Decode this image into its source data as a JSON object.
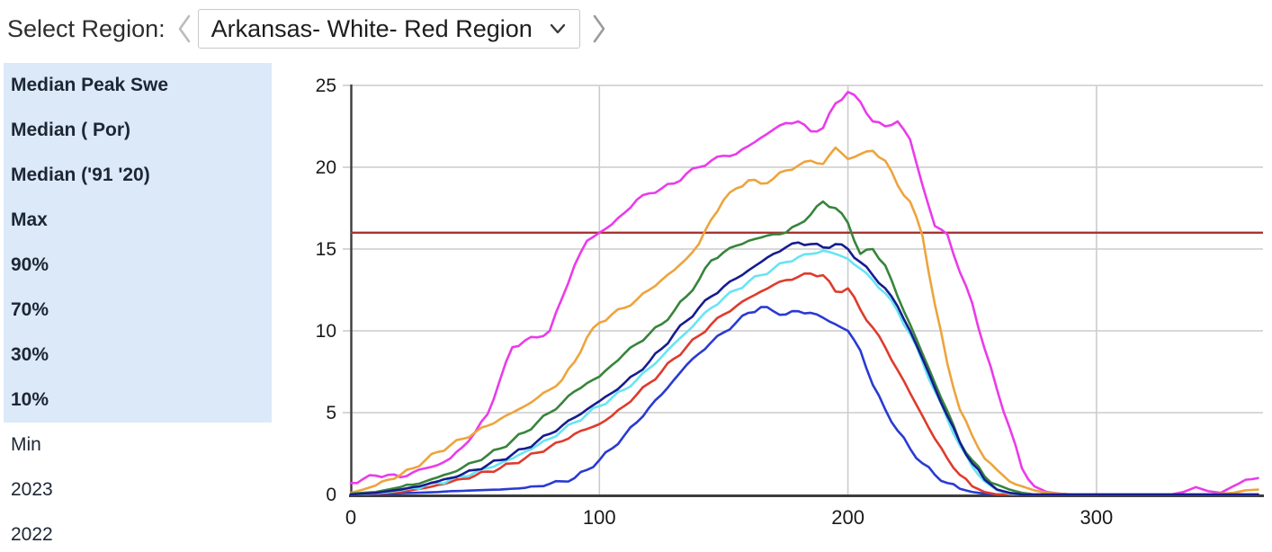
{
  "header": {
    "label": "Select Region:",
    "region": "Arkansas- White- Red Region",
    "prev_icon": "chevron-left",
    "next_icon": "chevron-right",
    "caret_icon": "chevron-down"
  },
  "legend": {
    "items": [
      {
        "label": "Median Peak Swe",
        "active": true
      },
      {
        "label": "Median ( Por)",
        "active": true
      },
      {
        "label": "Median ('91 '20)",
        "active": true
      },
      {
        "label": "Max",
        "active": true
      },
      {
        "label": "90%",
        "active": true
      },
      {
        "label": "70%",
        "active": true
      },
      {
        "label": "30%",
        "active": true
      },
      {
        "label": "10%",
        "active": true
      },
      {
        "label": "Min",
        "active": false
      },
      {
        "label": "2023",
        "active": false
      },
      {
        "label": "2022",
        "active": false
      }
    ]
  },
  "colors": {
    "legend_active_bg": "#dbe9f9",
    "grid": "#cccccc",
    "axis": "#3c3c3c",
    "tick_text": "#1a1a1a"
  },
  "chart_data": {
    "type": "line",
    "title": "",
    "xlabel": "",
    "ylabel": "",
    "x_range": [
      0,
      367
    ],
    "y_range": [
      0,
      25
    ],
    "x_ticks": [
      0,
      100,
      200,
      300
    ],
    "y_ticks": [
      0,
      5,
      10,
      15,
      20,
      25
    ],
    "grid": true,
    "day_step": 5,
    "series": [
      {
        "name": "Median Peak Swe",
        "color": "#a83434",
        "kind": "hline",
        "value": 16
      },
      {
        "name": "Max",
        "color": "#ea3bea",
        "kind": "curve",
        "values": [
          0.7,
          0.95,
          1.15,
          1.2,
          1.05,
          1.35,
          1.6,
          1.8,
          2.2,
          2.9,
          3.8,
          4.9,
          7.0,
          9.0,
          9.4,
          9.6,
          10.0,
          12.0,
          14.0,
          15.5,
          16.0,
          16.5,
          17.2,
          18.0,
          18.4,
          18.7,
          19.0,
          19.6,
          20.0,
          20.4,
          20.7,
          20.8,
          21.3,
          21.8,
          22.3,
          22.7,
          22.8,
          22.2,
          22.4,
          23.9,
          24.6,
          24.0,
          22.8,
          22.5,
          22.8,
          21.7,
          18.9,
          16.4,
          15.9,
          13.6,
          11.7,
          8.9,
          6.4,
          4.1,
          1.6,
          0.5,
          0.15,
          0.05,
          0,
          0,
          0,
          0,
          0,
          0,
          0,
          0,
          0,
          0.15,
          0.45,
          0.2,
          0.1,
          0.5,
          0.9,
          1.0
        ]
      },
      {
        "name": "90%",
        "color": "#eda43c",
        "kind": "curve",
        "values": [
          0.1,
          0.3,
          0.55,
          0.9,
          1.2,
          1.6,
          2.1,
          2.6,
          3.0,
          3.4,
          3.8,
          4.2,
          4.6,
          5.0,
          5.4,
          5.9,
          6.4,
          7.0,
          8.1,
          9.6,
          10.5,
          11.0,
          11.4,
          11.9,
          12.5,
          13.1,
          13.7,
          14.4,
          15.3,
          16.8,
          18.0,
          18.7,
          19.2,
          19.0,
          19.3,
          19.8,
          20.1,
          20.4,
          20.2,
          21.2,
          20.5,
          20.8,
          21.0,
          20.4,
          18.9,
          17.9,
          15.8,
          11.6,
          8.0,
          5.2,
          3.6,
          2.2,
          1.5,
          0.8,
          0.5,
          0.25,
          0.1,
          0.05,
          0,
          0,
          0,
          0,
          0,
          0,
          0,
          0,
          0,
          0,
          0,
          0,
          0.05,
          0.1,
          0.25,
          0.3
        ]
      },
      {
        "name": "70%",
        "color": "#38843c",
        "kind": "curve",
        "values": [
          0.05,
          0.1,
          0.15,
          0.3,
          0.45,
          0.6,
          0.8,
          1.05,
          1.3,
          1.65,
          2.0,
          2.4,
          2.8,
          3.3,
          3.8,
          4.4,
          5.0,
          5.6,
          6.3,
          6.8,
          7.2,
          7.9,
          8.6,
          9.2,
          9.8,
          10.4,
          11.2,
          12.1,
          13.1,
          14.3,
          14.8,
          15.2,
          15.5,
          15.7,
          15.9,
          16.0,
          16.5,
          17.1,
          17.9,
          17.5,
          16.6,
          14.7,
          15.0,
          14.0,
          12.1,
          10.4,
          8.6,
          6.8,
          5.1,
          3.2,
          2.1,
          1.1,
          0.6,
          0.3,
          0.1,
          0,
          0,
          0,
          0,
          0,
          0,
          0,
          0,
          0,
          0,
          0,
          0,
          0,
          0,
          0,
          0,
          0,
          0,
          0
        ]
      },
      {
        "name": "10%",
        "color": "#2a3ad2",
        "kind": "curve",
        "values": [
          0,
          0,
          0.02,
          0.05,
          0.08,
          0.1,
          0.12,
          0.15,
          0.2,
          0.22,
          0.25,
          0.28,
          0.3,
          0.35,
          0.4,
          0.5,
          0.65,
          0.8,
          1.0,
          1.5,
          2.1,
          2.8,
          3.6,
          4.4,
          5.3,
          6.1,
          7.0,
          7.9,
          8.6,
          9.3,
          9.9,
          10.5,
          11.1,
          11.45,
          11.2,
          11.0,
          11.2,
          11.1,
          10.8,
          10.4,
          10.0,
          8.8,
          6.7,
          5.2,
          3.9,
          2.8,
          1.9,
          1.2,
          0.7,
          0.35,
          0.15,
          0.05,
          0,
          0,
          0,
          0,
          0,
          0,
          0,
          0,
          0,
          0,
          0,
          0,
          0,
          0,
          0,
          0,
          0,
          0,
          0,
          0,
          0,
          0
        ]
      },
      {
        "name": "30%",
        "color": "#de3b2d",
        "kind": "curve",
        "values": [
          0,
          0.02,
          0.05,
          0.1,
          0.15,
          0.28,
          0.4,
          0.58,
          0.75,
          0.95,
          1.15,
          1.4,
          1.6,
          1.9,
          2.2,
          2.55,
          2.9,
          3.25,
          3.7,
          4.0,
          4.3,
          4.8,
          5.4,
          6.1,
          6.8,
          7.5,
          8.3,
          9.0,
          9.7,
          10.4,
          11.0,
          11.5,
          12.0,
          12.4,
          12.8,
          13.1,
          13.3,
          13.5,
          13.4,
          12.4,
          12.6,
          11.3,
          10.2,
          9.0,
          7.6,
          6.2,
          4.8,
          3.4,
          2.2,
          1.2,
          0.5,
          0.15,
          0,
          0,
          0,
          0,
          0,
          0,
          0,
          0,
          0,
          0,
          0,
          0,
          0,
          0,
          0,
          0,
          0,
          0,
          0,
          0,
          0,
          0
        ]
      },
      {
        "name": "Median ( Por)",
        "color": "#68e4f4",
        "kind": "curve",
        "values": [
          0,
          0.03,
          0.08,
          0.15,
          0.25,
          0.4,
          0.55,
          0.7,
          0.9,
          1.1,
          1.35,
          1.6,
          1.9,
          2.2,
          2.6,
          3.0,
          3.4,
          3.9,
          4.4,
          4.9,
          5.4,
          5.9,
          6.4,
          7.0,
          7.7,
          8.4,
          9.2,
          9.9,
          10.7,
          11.4,
          12.0,
          12.5,
          13.0,
          13.4,
          13.8,
          14.2,
          14.5,
          14.7,
          14.9,
          14.7,
          14.4,
          13.8,
          13.1,
          12.3,
          11.2,
          9.8,
          8.1,
          6.3,
          4.6,
          3.0,
          1.7,
          0.8,
          0.25,
          0.05,
          0,
          0,
          0,
          0,
          0,
          0,
          0,
          0,
          0,
          0,
          0,
          0,
          0,
          0,
          0,
          0,
          0,
          0,
          0,
          0
        ]
      },
      {
        "name": "Median ('91 '20)",
        "color": "#161c8e",
        "kind": "curve",
        "values": [
          0,
          0.05,
          0.1,
          0.2,
          0.3,
          0.45,
          0.6,
          0.8,
          1.0,
          1.25,
          1.5,
          1.8,
          2.1,
          2.45,
          2.8,
          3.25,
          3.7,
          4.2,
          4.7,
          5.2,
          5.7,
          6.2,
          6.8,
          7.4,
          8.1,
          8.9,
          9.8,
          10.6,
          11.4,
          12.1,
          12.7,
          13.2,
          13.7,
          14.2,
          14.7,
          15.1,
          15.4,
          15.3,
          15.1,
          15.3,
          15.0,
          14.2,
          13.4,
          12.6,
          11.5,
          10.0,
          8.3,
          6.5,
          4.8,
          3.2,
          1.9,
          0.9,
          0.3,
          0.1,
          0,
          0,
          0,
          0,
          0,
          0,
          0,
          0,
          0,
          0,
          0,
          0,
          0,
          0,
          0,
          0,
          0,
          0,
          0,
          0
        ]
      }
    ]
  }
}
